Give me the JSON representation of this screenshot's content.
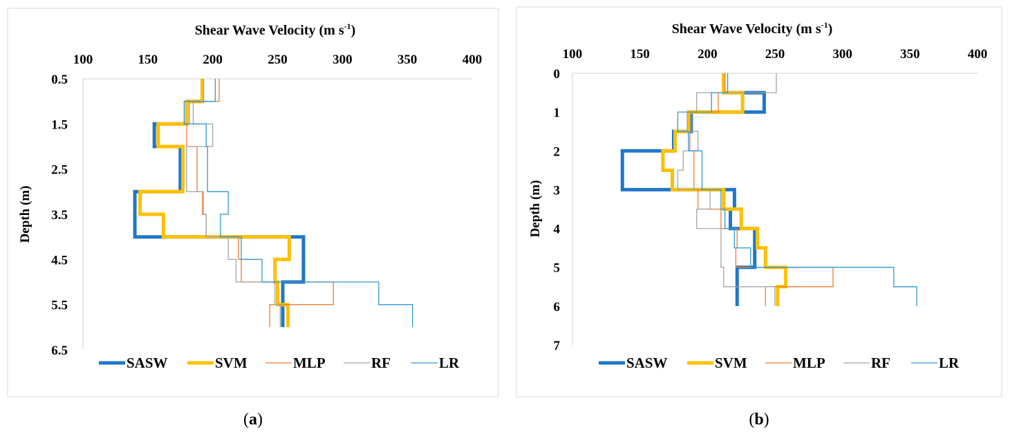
{
  "chart_data": [
    {
      "type": "line",
      "panel_label": "a",
      "title": "Shear Wave Velocity (m s",
      "title_sup": "-1",
      "title_end": ")",
      "ylabel": "Depth (m)",
      "xlim": [
        100,
        400
      ],
      "ylim": [
        0.5,
        6.5
      ],
      "x_ticks": [
        "100",
        "150",
        "200",
        "250",
        "300",
        "350",
        "400"
      ],
      "y_ticks": [
        "0.5",
        "1.5",
        "2.5",
        "3.5",
        "4.5",
        "5.5",
        "6.5"
      ],
      "y_inverted": true,
      "series": [
        {
          "name": "SASW",
          "color": "#1f77c9",
          "width": 5,
          "x": [
            192,
            192,
            180,
            180,
            155,
            155,
            175,
            175,
            140,
            140,
            140,
            140,
            270,
            270,
            270,
            270,
            254,
            254
          ],
          "y": [
            0.5,
            1.0,
            1.0,
            1.5,
            1.5,
            2.0,
            2.0,
            3.0,
            3.0,
            3.5,
            3.5,
            4.0,
            4.0,
            4.5,
            4.5,
            5.0,
            5.0,
            6.0
          ]
        },
        {
          "name": "SVM",
          "color": "#ffc000",
          "width": 5,
          "x": [
            192,
            192,
            180,
            180,
            158,
            158,
            177,
            177,
            144,
            144,
            162,
            162,
            259,
            259,
            248,
            248,
            250,
            250,
            258,
            258
          ],
          "y": [
            0.5,
            1.0,
            1.0,
            1.5,
            1.5,
            2.0,
            2.0,
            3.0,
            3.0,
            3.5,
            3.5,
            4.0,
            4.0,
            4.5,
            4.5,
            5.0,
            5.0,
            5.5,
            5.5,
            6.0
          ]
        },
        {
          "name": "MLP",
          "color": "#ed7d31",
          "width": 1.3,
          "x": [
            205,
            205,
            182,
            182,
            180,
            180,
            188,
            188,
            192,
            192,
            195,
            195,
            220,
            220,
            222,
            222,
            293,
            293,
            244,
            244
          ],
          "y": [
            0.5,
            1.0,
            1.0,
            1.5,
            1.5,
            2.0,
            2.0,
            3.0,
            3.0,
            3.5,
            3.5,
            4.0,
            4.0,
            4.5,
            4.5,
            5.0,
            5.0,
            5.5,
            5.5,
            6.0
          ]
        },
        {
          "name": "RF",
          "color": "#a5a5a5",
          "width": 1.3,
          "x": [
            193,
            193,
            185,
            185,
            200,
            200,
            180,
            180,
            193,
            193,
            195,
            195,
            212,
            212,
            218,
            218,
            248,
            248,
            252,
            252
          ],
          "y": [
            0.5,
            1.0,
            1.0,
            1.5,
            1.5,
            2.0,
            2.0,
            3.0,
            3.0,
            3.5,
            3.5,
            4.0,
            4.0,
            4.5,
            4.5,
            5.0,
            5.0,
            5.5,
            5.5,
            6.0
          ]
        },
        {
          "name": "LR",
          "color": "#2e96d6",
          "width": 1.3,
          "x": [
            202,
            202,
            178,
            178,
            195,
            195,
            196,
            196,
            212,
            212,
            206,
            206,
            222,
            222,
            238,
            238,
            328,
            328,
            354,
            354
          ],
          "y": [
            0.5,
            1.0,
            1.0,
            1.5,
            1.5,
            2.0,
            2.0,
            3.0,
            3.0,
            3.5,
            3.5,
            4.0,
            4.0,
            4.5,
            4.5,
            5.0,
            5.0,
            5.5,
            5.5,
            6.0
          ]
        }
      ]
    },
    {
      "type": "line",
      "panel_label": "b",
      "title": "Shear Wave Velocity (m s",
      "title_sup": "-1",
      "title_end": ")",
      "ylabel": "Depth (m)",
      "xlim": [
        100,
        400
      ],
      "ylim": [
        0,
        7
      ],
      "x_ticks": [
        "100",
        "150",
        "200",
        "250",
        "300",
        "350",
        "400"
      ],
      "y_ticks": [
        "0",
        "1",
        "2",
        "3",
        "4",
        "5",
        "6",
        "7"
      ],
      "y_inverted": true,
      "series": [
        {
          "name": "SASW",
          "color": "#1f77c9",
          "width": 5,
          "x": [
            212,
            212,
            242,
            242,
            188,
            188,
            175,
            175,
            137,
            137,
            220,
            220,
            217,
            217,
            235,
            235,
            222,
            222
          ],
          "y": [
            0,
            0.5,
            0.5,
            1.0,
            1.0,
            1.5,
            1.5,
            2.0,
            2.0,
            3.0,
            3.0,
            3.5,
            3.5,
            4.0,
            4.0,
            5.0,
            5.0,
            6.0
          ]
        },
        {
          "name": "SVM",
          "color": "#ffc000",
          "width": 5,
          "x": [
            212,
            212,
            226,
            226,
            186,
            186,
            176,
            176,
            167,
            167,
            174,
            174,
            212,
            212,
            225,
            225,
            237,
            237,
            243,
            243,
            258,
            258,
            252,
            252
          ],
          "y": [
            0,
            0.5,
            0.5,
            1.0,
            1.0,
            1.5,
            1.5,
            2.0,
            2.0,
            2.5,
            2.5,
            3.0,
            3.0,
            3.5,
            3.5,
            4.0,
            4.0,
            4.5,
            4.5,
            5.0,
            5.0,
            5.5,
            5.5,
            6.0
          ]
        },
        {
          "name": "MLP",
          "color": "#ed7d31",
          "width": 1.3,
          "x": [
            213,
            213,
            208,
            208,
            188,
            188,
            187,
            187,
            190,
            190,
            193,
            193,
            210,
            210,
            222,
            222,
            221,
            221,
            293,
            293,
            243,
            243
          ],
          "y": [
            0,
            0.5,
            0.5,
            1.0,
            1.0,
            1.5,
            1.5,
            2.0,
            2.0,
            3.0,
            3.0,
            3.5,
            3.5,
            4.0,
            4.0,
            4.5,
            4.5,
            5.0,
            5.0,
            5.5,
            5.5,
            6.0
          ]
        },
        {
          "name": "RF",
          "color": "#a5a5a5",
          "width": 1.3,
          "x": [
            251,
            251,
            192,
            192,
            185,
            185,
            193,
            193,
            182,
            182,
            178,
            178,
            202,
            202,
            192,
            192,
            210,
            210,
            212,
            212,
            250,
            250
          ],
          "y": [
            0,
            0.5,
            0.5,
            1.0,
            1.0,
            1.5,
            1.5,
            2.0,
            2.0,
            2.5,
            2.5,
            3.0,
            3.0,
            3.5,
            3.5,
            4.0,
            4.0,
            5.0,
            5.0,
            5.5,
            5.5,
            6.0
          ]
        },
        {
          "name": "LR",
          "color": "#2e96d6",
          "width": 1.3,
          "x": [
            215,
            215,
            203,
            203,
            178,
            178,
            186,
            186,
            196,
            196,
            210,
            210,
            213,
            213,
            220,
            220,
            232,
            232,
            338,
            338,
            355,
            355
          ],
          "y": [
            0,
            0.5,
            0.5,
            1.0,
            1.0,
            1.5,
            1.5,
            2.0,
            2.0,
            3.0,
            3.0,
            3.5,
            3.5,
            4.0,
            4.0,
            4.5,
            4.5,
            5.0,
            5.0,
            5.5,
            5.5,
            6.0
          ]
        }
      ]
    }
  ]
}
